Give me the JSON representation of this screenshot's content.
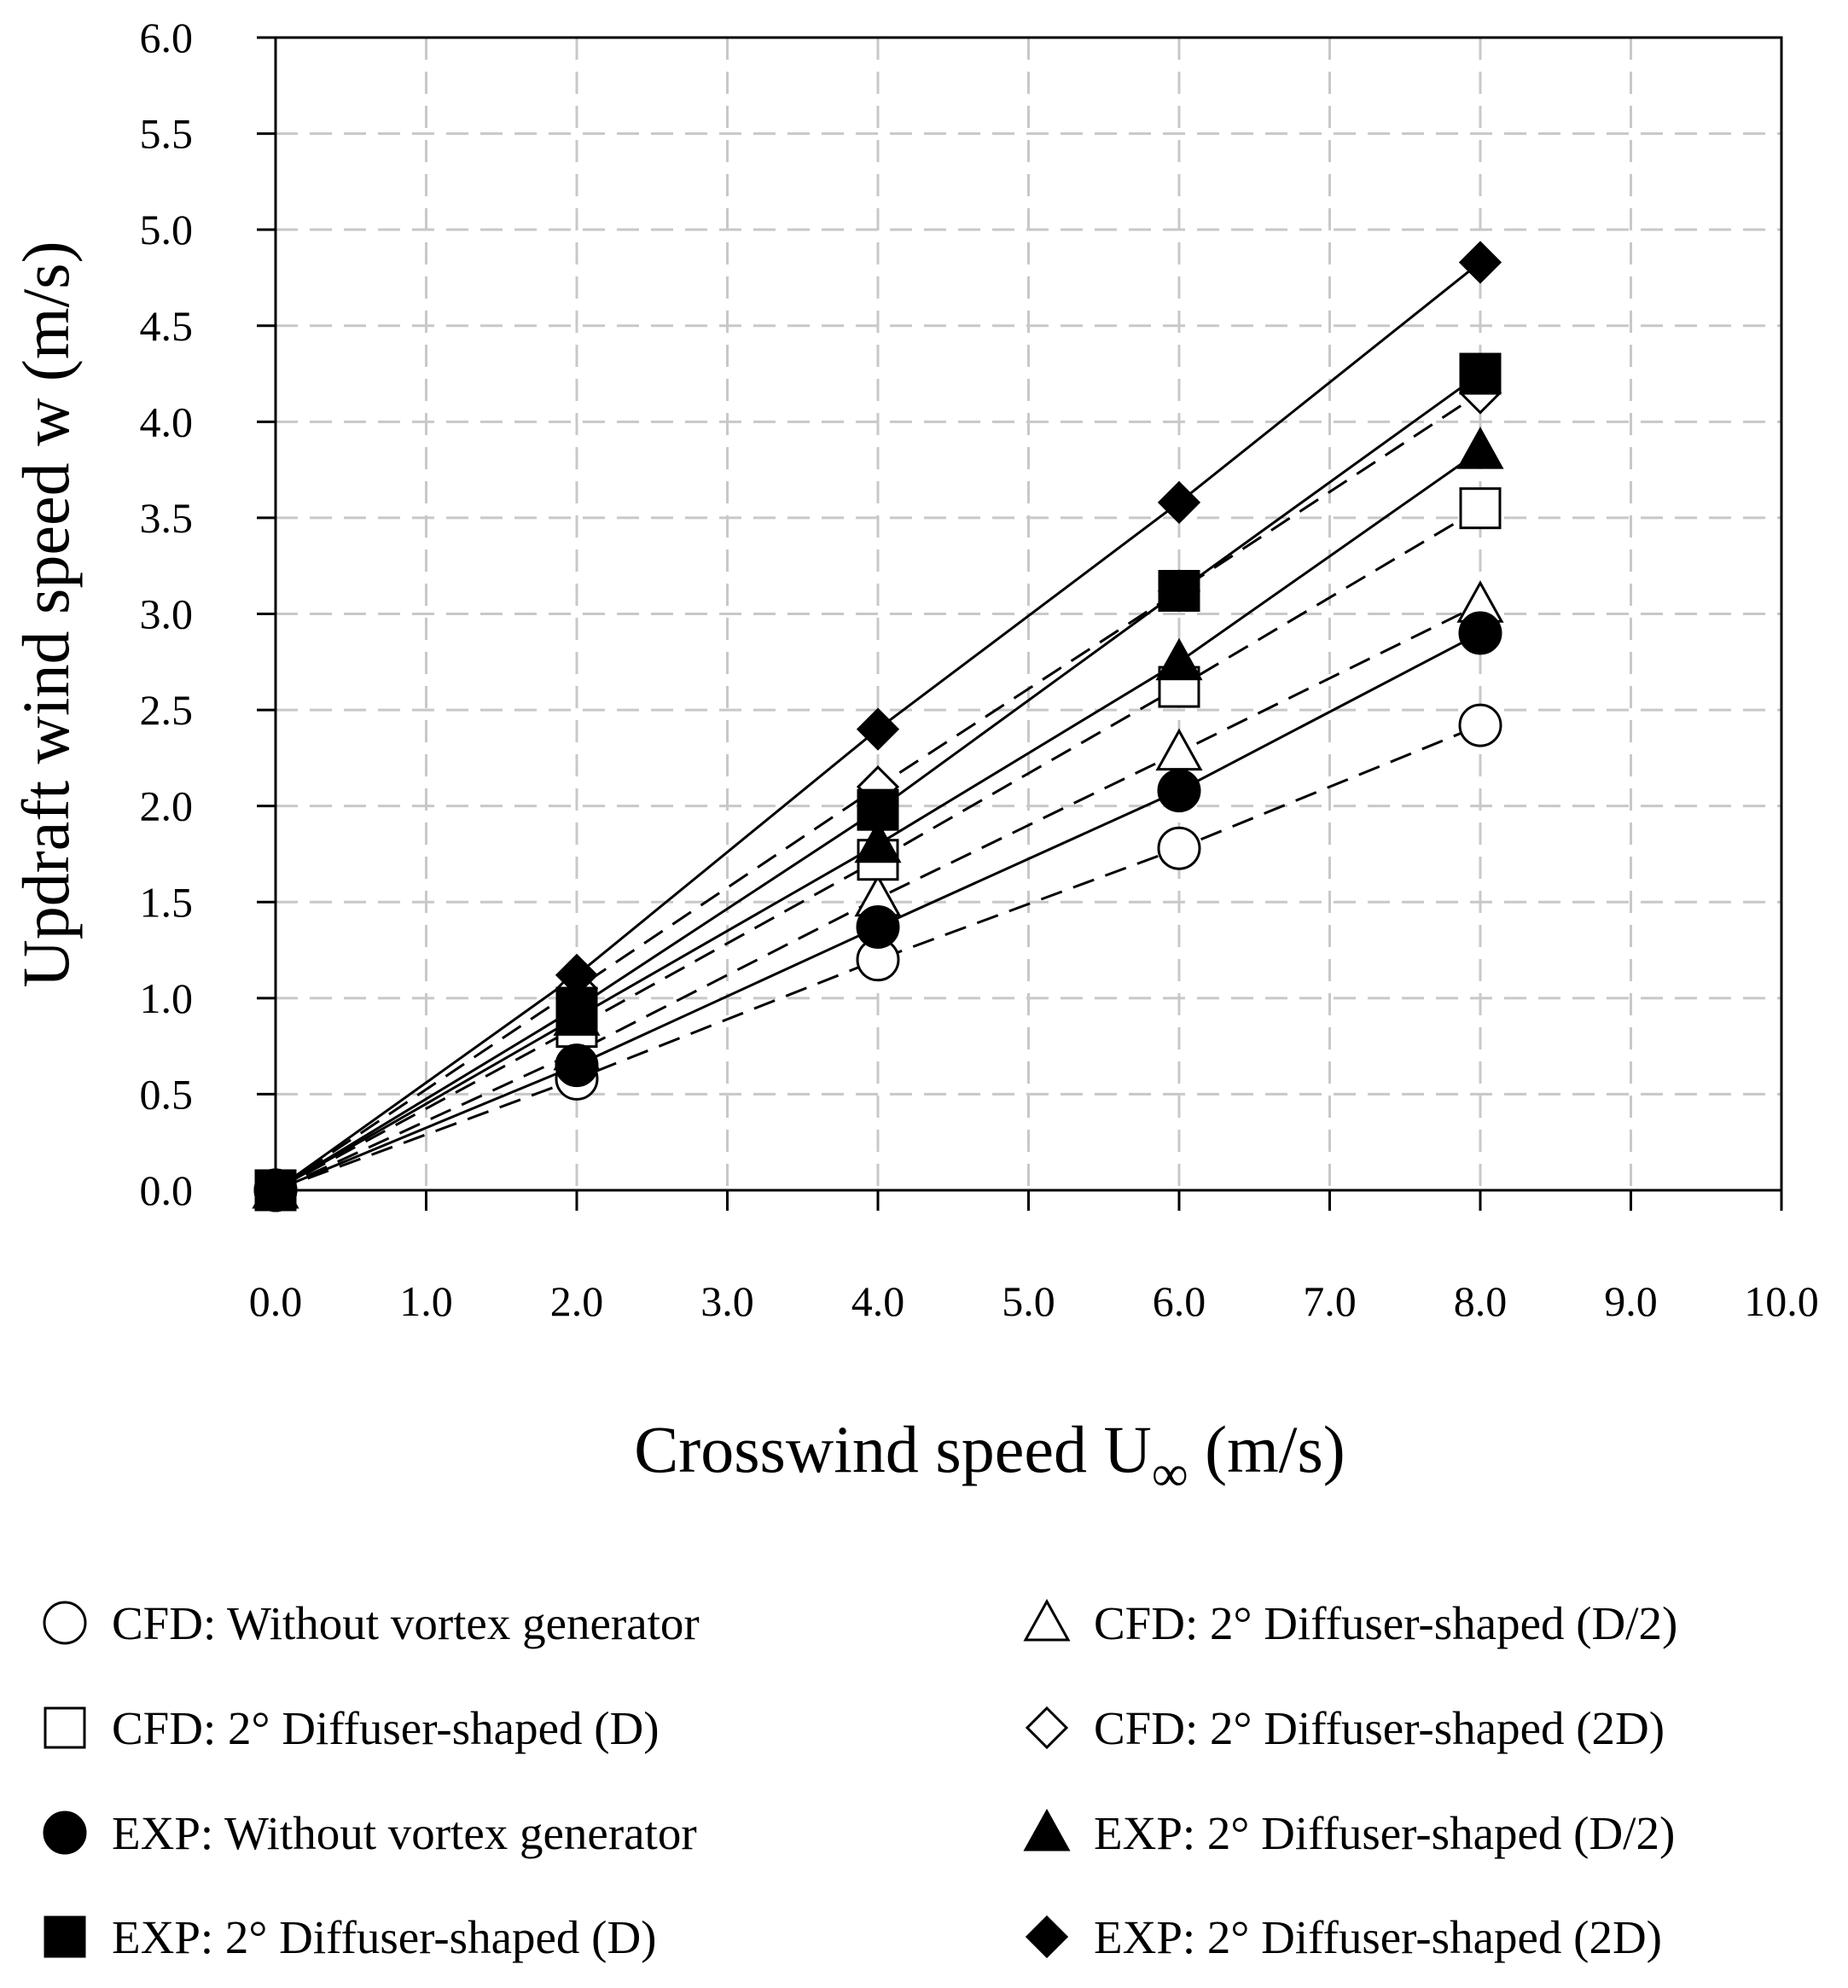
{
  "chart_data": {
    "type": "line",
    "title": "",
    "xlabel": "Crosswind speed U",
    "xlabel_subscript": "∞",
    "xlabel_unit": " (m/s)",
    "ylabel": "Updraft wind speed w (m/s)",
    "xlim": [
      0,
      10
    ],
    "ylim": [
      0,
      6
    ],
    "x_ticks": [
      "0.0",
      "1.0",
      "2.0",
      "3.0",
      "4.0",
      "5.0",
      "6.0",
      "7.0",
      "8.0",
      "9.0",
      "10.0"
    ],
    "y_ticks": [
      "0.0",
      "0.5",
      "1.0",
      "1.5",
      "2.0",
      "2.5",
      "3.0",
      "3.5",
      "4.0",
      "4.5",
      "5.0",
      "5.5",
      "6.0"
    ],
    "grid": true,
    "x": [
      0,
      2,
      4,
      6,
      8
    ],
    "series": [
      {
        "name": "CFD: Without vortex generator",
        "marker": "circle",
        "filled": false,
        "line": "dashed",
        "values": [
          0,
          0.58,
          1.2,
          1.78,
          2.42
        ]
      },
      {
        "name": "CFD: 2° Diffuser-shaped (D/2)",
        "marker": "triangle",
        "filled": false,
        "line": "dashed",
        "values": [
          0,
          0.72,
          1.52,
          2.28,
          3.05
        ]
      },
      {
        "name": "CFD: 2° Diffuser-shaped (D)",
        "marker": "square",
        "filled": false,
        "line": "dashed",
        "values": [
          0,
          0.85,
          1.72,
          2.62,
          3.55
        ]
      },
      {
        "name": "CFD: 2° Diffuser-shaped (2D)",
        "marker": "diamond",
        "filled": false,
        "line": "dashed",
        "values": [
          0,
          1.05,
          2.1,
          3.12,
          4.15
        ]
      },
      {
        "name": "EXP: Without vortex generator",
        "marker": "circle",
        "filled": true,
        "line": "solid",
        "values": [
          0,
          0.65,
          1.37,
          2.08,
          2.9
        ]
      },
      {
        "name": "EXP: 2° Diffuser-shaped (D/2)",
        "marker": "triangle",
        "filled": true,
        "line": "solid",
        "values": [
          0,
          0.9,
          1.8,
          2.75,
          3.85
        ]
      },
      {
        "name": "EXP: 2° Diffuser-shaped (D)",
        "marker": "square",
        "filled": true,
        "line": "solid",
        "values": [
          0,
          0.95,
          1.98,
          3.12,
          4.25
        ]
      },
      {
        "name": "EXP: 2° Diffuser-shaped (2D)",
        "marker": "diamond",
        "filled": true,
        "line": "solid",
        "values": [
          0,
          1.12,
          2.4,
          3.58,
          4.83
        ]
      }
    ],
    "legend": {
      "placement": "bottom",
      "order": [
        "CFD: Without vortex generator",
        "CFD: 2° Diffuser-shaped (D/2)",
        "CFD: 2° Diffuser-shaped (D)",
        "CFD: 2° Diffuser-shaped (2D)",
        "EXP: Without vortex generator",
        "EXP: 2° Diffuser-shaped (D/2)",
        "EXP: 2° Diffuser-shaped (D)",
        "EXP: 2° Diffuser-shaped (2D)"
      ]
    }
  }
}
